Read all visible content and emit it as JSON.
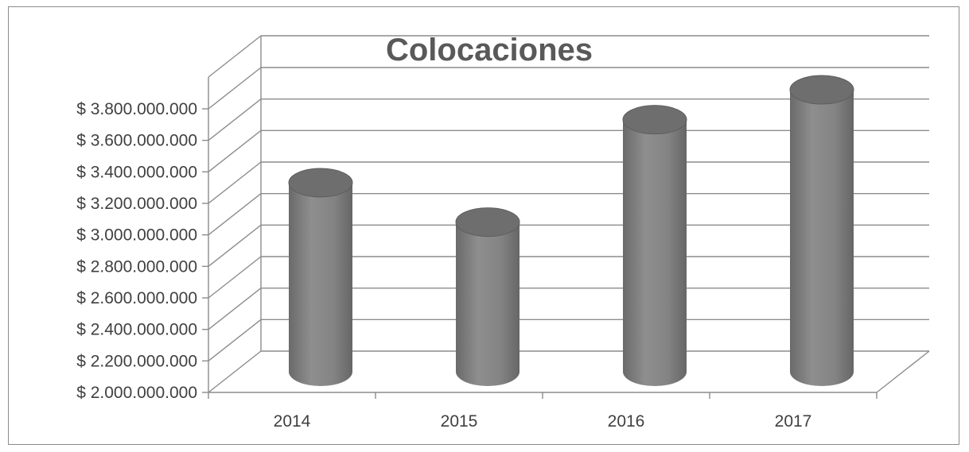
{
  "chart_data": {
    "type": "bar",
    "title": "Colocaciones",
    "xlabel": "",
    "ylabel": "",
    "categories": [
      "2014",
      "2015",
      "2016",
      "2017"
    ],
    "series": [
      {
        "values": [
          3200000000,
          2950000000,
          3600000000,
          3790000000
        ]
      }
    ],
    "ylim": [
      2000000000,
      3800000000
    ],
    "y_ticks": [
      "$ 2.000.000.000",
      "$ 2.200.000.000",
      "$ 2.400.000.000",
      "$ 2.600.000.000",
      "$ 2.800.000.000",
      "$ 3.000.000.000",
      "$ 3.200.000.000",
      "$ 3.400.000.000",
      "$ 3.600.000.000",
      "$ 3.800.000.000"
    ],
    "grid": true,
    "legend": "none",
    "bar_shape": "cylinder",
    "colors": {
      "bar": "#808080",
      "bar_top": "#6e6e6e",
      "grid": "#8c8c8c"
    }
  }
}
